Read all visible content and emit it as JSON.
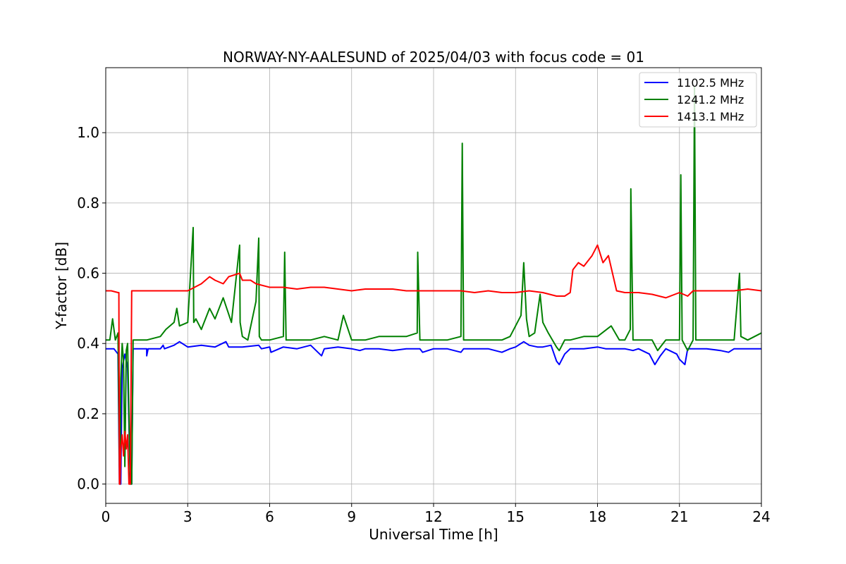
{
  "chart_data": {
    "type": "line",
    "title": "NORWAY-NY-AALESUND of 2025/04/03 with focus code = 01",
    "xlabel": "Universal Time [h]",
    "ylabel": "Y-factor [dB]",
    "xlim": [
      0,
      24
    ],
    "ylim": [
      -0.055,
      1.185
    ],
    "xticks": [
      0,
      3,
      6,
      9,
      12,
      15,
      18,
      21,
      24
    ],
    "xtick_labels": [
      "0",
      "3",
      "6",
      "9",
      "12",
      "15",
      "18",
      "21",
      "24"
    ],
    "yticks": [
      0.0,
      0.2,
      0.4,
      0.6,
      0.8,
      1.0
    ],
    "ytick_labels": [
      "0.0",
      "0.2",
      "0.4",
      "0.6",
      "0.8",
      "1.0"
    ],
    "grid": true,
    "legend_position": "top-right",
    "series": [
      {
        "name": "1102.5 MHz",
        "color": "#0000ff",
        "x": [
          0,
          0.3,
          0.45,
          0.5,
          0.52,
          0.55,
          0.6,
          0.7,
          0.8,
          0.9,
          0.95,
          1.0,
          1.5,
          1.5,
          1.55,
          2.0,
          2.1,
          2.15,
          2.5,
          2.7,
          3.0,
          3.5,
          4.0,
          4.4,
          4.5,
          5.0,
          5.6,
          5.7,
          6.0,
          6.05,
          6.5,
          7.0,
          7.5,
          7.9,
          8.0,
          8.5,
          9.0,
          9.3,
          9.5,
          10.0,
          10.5,
          11.0,
          11.5,
          11.6,
          12.0,
          12.5,
          13.0,
          13.1,
          13.5,
          14.0,
          14.5,
          14.8,
          15.0,
          15.3,
          15.5,
          15.8,
          16.0,
          16.3,
          16.5,
          16.6,
          16.8,
          17.0,
          17.5,
          18.0,
          18.3,
          18.5,
          19.0,
          19.3,
          19.5,
          19.9,
          20.1,
          20.3,
          20.5,
          20.9,
          21.0,
          21.2,
          21.3,
          21.5,
          22.0,
          22.5,
          22.8,
          23.0,
          23.5,
          24.0
        ],
        "y": [
          0.385,
          0.385,
          0.37,
          0.0,
          0.0,
          0.0,
          0.33,
          0.37,
          0.33,
          0.0,
          0.0,
          0.385,
          0.385,
          0.365,
          0.385,
          0.385,
          0.395,
          0.385,
          0.395,
          0.405,
          0.39,
          0.395,
          0.39,
          0.405,
          0.39,
          0.39,
          0.395,
          0.385,
          0.39,
          0.375,
          0.39,
          0.385,
          0.395,
          0.365,
          0.385,
          0.39,
          0.385,
          0.38,
          0.385,
          0.385,
          0.38,
          0.385,
          0.385,
          0.375,
          0.385,
          0.385,
          0.375,
          0.385,
          0.385,
          0.385,
          0.375,
          0.385,
          0.39,
          0.405,
          0.395,
          0.39,
          0.39,
          0.395,
          0.35,
          0.34,
          0.37,
          0.385,
          0.385,
          0.39,
          0.385,
          0.385,
          0.385,
          0.38,
          0.385,
          0.37,
          0.34,
          0.365,
          0.385,
          0.37,
          0.355,
          0.34,
          0.385,
          0.385,
          0.385,
          0.38,
          0.375,
          0.385,
          0.385,
          0.385
        ]
      },
      {
        "name": "1241.2 MHz",
        "color": "#008000",
        "x": [
          0,
          0.15,
          0.25,
          0.35,
          0.45,
          0.5,
          0.52,
          0.55,
          0.6,
          0.65,
          0.7,
          0.75,
          0.8,
          0.85,
          0.9,
          0.95,
          1.0,
          1.5,
          2.0,
          2.2,
          2.5,
          2.6,
          2.7,
          3.0,
          3.2,
          3.22,
          3.3,
          3.5,
          3.8,
          4.0,
          4.3,
          4.6,
          4.9,
          4.92,
          5.0,
          5.2,
          5.5,
          5.6,
          5.62,
          5.7,
          6.0,
          6.5,
          6.55,
          6.6,
          7.0,
          7.5,
          8.0,
          8.5,
          8.7,
          9.0,
          9.5,
          10.0,
          10.5,
          11.0,
          11.4,
          11.42,
          11.5,
          12.0,
          12.5,
          13.0,
          13.05,
          13.1,
          13.5,
          14.0,
          14.5,
          14.8,
          15.0,
          15.2,
          15.3,
          15.4,
          15.5,
          15.7,
          15.9,
          16.0,
          16.2,
          16.5,
          16.6,
          16.8,
          17.0,
          17.5,
          18.0,
          18.5,
          18.8,
          19.0,
          19.2,
          19.22,
          19.3,
          19.5,
          20.0,
          20.2,
          20.5,
          21.0,
          21.05,
          21.1,
          21.3,
          21.5,
          21.55,
          21.6,
          22.0,
          22.5,
          23.0,
          23.2,
          23.25,
          23.5,
          24.0
        ],
        "y": [
          0.41,
          0.41,
          0.47,
          0.41,
          0.43,
          0.05,
          0.0,
          0.3,
          0.4,
          0.35,
          0.05,
          0.38,
          0.4,
          0.2,
          0.0,
          0.0,
          0.41,
          0.41,
          0.42,
          0.44,
          0.46,
          0.5,
          0.45,
          0.46,
          0.73,
          0.46,
          0.47,
          0.44,
          0.5,
          0.47,
          0.53,
          0.46,
          0.68,
          0.46,
          0.42,
          0.41,
          0.52,
          0.7,
          0.42,
          0.41,
          0.41,
          0.42,
          0.66,
          0.41,
          0.41,
          0.41,
          0.42,
          0.41,
          0.48,
          0.41,
          0.41,
          0.42,
          0.42,
          0.42,
          0.43,
          0.66,
          0.41,
          0.41,
          0.41,
          0.42,
          0.97,
          0.41,
          0.41,
          0.41,
          0.41,
          0.42,
          0.45,
          0.48,
          0.63,
          0.47,
          0.42,
          0.43,
          0.54,
          0.46,
          0.43,
          0.39,
          0.38,
          0.41,
          0.41,
          0.42,
          0.42,
          0.45,
          0.41,
          0.41,
          0.44,
          0.84,
          0.41,
          0.41,
          0.41,
          0.38,
          0.41,
          0.41,
          0.88,
          0.41,
          0.38,
          0.41,
          1.13,
          0.41,
          0.41,
          0.41,
          0.41,
          0.6,
          0.42,
          0.41,
          0.43
        ]
      },
      {
        "name": "1413.1 MHz",
        "color": "#ff0000",
        "x": [
          0,
          0.2,
          0.45,
          0.48,
          0.5,
          0.52,
          0.55,
          0.6,
          0.65,
          0.7,
          0.75,
          0.8,
          0.85,
          0.9,
          0.95,
          1.0,
          1.5,
          2.0,
          2.5,
          3.0,
          3.5,
          3.8,
          4.0,
          4.3,
          4.5,
          4.9,
          5.0,
          5.3,
          5.5,
          6.0,
          6.5,
          7.0,
          7.5,
          8.0,
          8.5,
          9.0,
          9.5,
          10.0,
          10.5,
          11.0,
          11.5,
          12.0,
          12.5,
          13.0,
          13.5,
          14.0,
          14.5,
          15.0,
          15.5,
          16.0,
          16.5,
          16.8,
          17.0,
          17.1,
          17.3,
          17.5,
          17.8,
          18.0,
          18.2,
          18.4,
          18.55,
          18.7,
          19.0,
          19.5,
          20.0,
          20.5,
          21.0,
          21.3,
          21.5,
          22.0,
          22.5,
          23.0,
          23.5,
          24.0
        ],
        "y": [
          0.55,
          0.55,
          0.545,
          0.545,
          0.0,
          0.0,
          0.1,
          0.14,
          0.08,
          0.15,
          0.1,
          0.14,
          0.0,
          0.0,
          0.55,
          0.55,
          0.55,
          0.55,
          0.55,
          0.55,
          0.57,
          0.59,
          0.58,
          0.57,
          0.59,
          0.6,
          0.58,
          0.58,
          0.57,
          0.56,
          0.56,
          0.555,
          0.56,
          0.56,
          0.555,
          0.55,
          0.555,
          0.555,
          0.555,
          0.55,
          0.55,
          0.55,
          0.55,
          0.55,
          0.545,
          0.55,
          0.545,
          0.545,
          0.55,
          0.545,
          0.535,
          0.535,
          0.545,
          0.61,
          0.63,
          0.62,
          0.65,
          0.68,
          0.63,
          0.65,
          0.6,
          0.55,
          0.545,
          0.545,
          0.54,
          0.53,
          0.545,
          0.535,
          0.55,
          0.55,
          0.55,
          0.55,
          0.555,
          0.55
        ]
      }
    ]
  }
}
